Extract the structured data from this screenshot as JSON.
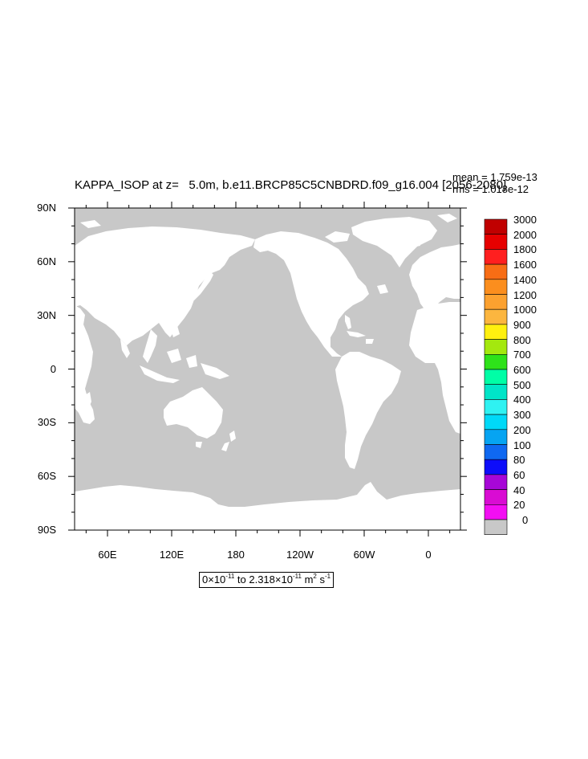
{
  "title": "KAPPA_ISOP at z=   5.0m, b.e11.BRCP85C5CNBDRD.f09_g16.004 [2056-2080]",
  "stats": {
    "mean": "mean = 1.759e-13",
    "rms": "rms = 1.018e-12"
  },
  "map": {
    "projection": "cylindrical-equidistant",
    "center_longitude": 180,
    "ocean_color": "#c8c8c8",
    "land_color": "#ffffff",
    "lat_labels": [
      "90N",
      "60N",
      "30N",
      "0",
      "30S",
      "60S",
      "90S"
    ],
    "lon_labels": [
      "60E",
      "120E",
      "180",
      "120W",
      "60W",
      "0"
    ]
  },
  "colorbar": {
    "labels": [
      "3000",
      "2000",
      "1800",
      "1600",
      "1400",
      "1200",
      "1000",
      "900",
      "800",
      "700",
      "600",
      "500",
      "400",
      "300",
      "200",
      "100",
      "80",
      "60",
      "40",
      "20",
      "0"
    ],
    "colors": [
      "#c00000",
      "#e60000",
      "#ff1f1f",
      "#f86d15",
      "#fb8e1e",
      "#fca12f",
      "#fcb63f",
      "#fff00f",
      "#a4e80e",
      "#2ee21a",
      "#00fea6",
      "#00e5c8",
      "#2ff2f2",
      "#00d9f8",
      "#06a4f2",
      "#0f68f1",
      "#0d0dfa",
      "#a707d7",
      "#d90cd3",
      "#f30ef3",
      "#c8c8c8"
    ]
  },
  "range_label": {
    "min_mantissa": "0",
    "min_exp": "-11",
    "to": "to",
    "max_mantissa": "2.318",
    "max_exp": "-11",
    "unit": "m",
    "unit_exp1": "2",
    "unit2": "s",
    "unit_exp2": "-1"
  }
}
